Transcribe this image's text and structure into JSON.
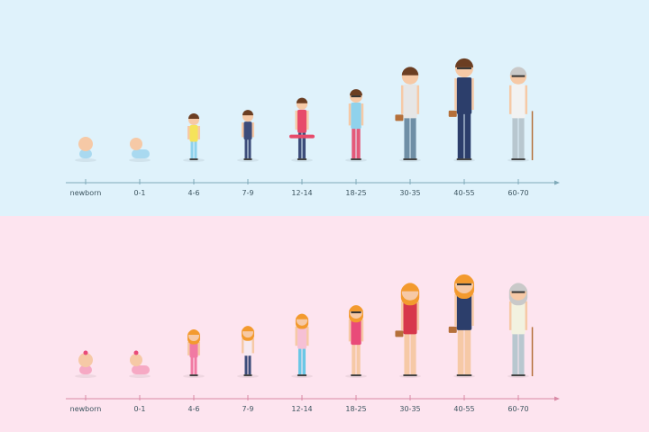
{
  "colors": {
    "top_bg": "#dff2fb",
    "bottom_bg": "#fde4ef",
    "top_axis": "#7fa9b8",
    "bottom_axis": "#d98aa6",
    "label_text": "#3d5560",
    "skin": "#f6c9a6",
    "hair_male": "#6b3e22",
    "hair_female": "#f39a2e",
    "hair_grey": "#c9c9c9"
  },
  "male_timeline": {
    "stages": [
      "newborn",
      "0-1",
      "4-6",
      "7-9",
      "12-14",
      "18-25",
      "30-35",
      "40-55",
      "60-70"
    ],
    "shirt_colors": [
      "#a9d9f0",
      "#a9d9f0",
      "#f5e35a",
      "#3c4c7a",
      "#e74a6a",
      "#8fd2ec",
      "#e6e6e6",
      "#2c3e6b",
      "#f2f2f2"
    ],
    "pants_colors": [
      "#a9d9f0",
      "#a9d9f0",
      "#8fd2ec",
      "#3c4c7a",
      "#3c4c7a",
      "#e45a7a",
      "#6f8fa6",
      "#2c3e6b",
      "#b8c7cf"
    ]
  },
  "female_timeline": {
    "stages": [
      "newborn",
      "0-1",
      "4-6",
      "7-9",
      "12-14",
      "18-25",
      "30-35",
      "40-55",
      "60-70"
    ],
    "shirt_colors": [
      "#f6a9c4",
      "#f6a9c4",
      "#f17aa3",
      "#f6e9f0",
      "#f6c0d5",
      "#e94b79",
      "#d7374b",
      "#2c3e6b",
      "#f2f2e0"
    ],
    "pants_colors": [
      "#f6a9c4",
      "#f6a9c4",
      "#f17aa3",
      "#3c4c7a",
      "#6bc7e6",
      "#f6c9a6",
      "#f6c9a6",
      "#f6c9a6",
      "#b8c7cf"
    ]
  }
}
